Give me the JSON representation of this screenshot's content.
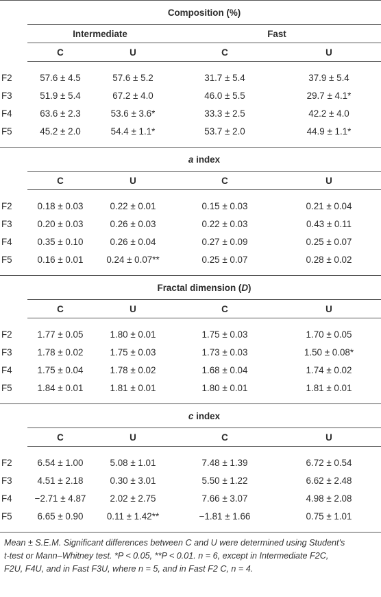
{
  "sections": [
    {
      "title_pre": "",
      "title_italic": "",
      "title_post": "Composition (%)",
      "closing_paren": "",
      "group_labels": [
        "Intermediate",
        "Fast"
      ],
      "column_headers": [
        "C",
        "U",
        "C",
        "U"
      ],
      "rows": [
        {
          "label": "F2",
          "values": [
            "57.6 ± 4.5",
            "57.6 ± 5.2",
            "31.7 ± 5.4",
            "37.9 ± 5.4"
          ]
        },
        {
          "label": "F3",
          "values": [
            "51.9 ± 5.4",
            "67.2 ± 4.0",
            "46.0 ± 5.5",
            "29.7 ± 4.1*"
          ]
        },
        {
          "label": "F4",
          "values": [
            "63.6 ± 2.3",
            "53.6 ± 3.6*",
            "33.3 ± 2.5",
            "42.2 ± 4.0"
          ]
        },
        {
          "label": "F5",
          "values": [
            "45.2 ± 2.0",
            "54.4 ± 1.1*",
            "53.7 ± 2.0",
            "44.9 ± 1.1*"
          ]
        }
      ]
    },
    {
      "title_pre": "",
      "title_italic": "a",
      "title_post": " index",
      "closing_paren": "",
      "column_headers": [
        "C",
        "U",
        "C",
        "U"
      ],
      "rows": [
        {
          "label": "F2",
          "values": [
            "0.18 ± 0.03",
            "0.22 ± 0.01",
            "0.15 ± 0.03",
            "0.21 ± 0.04"
          ]
        },
        {
          "label": "F3",
          "values": [
            "0.20 ± 0.03",
            "0.26 ± 0.03",
            "0.22 ± 0.03",
            "0.43 ± 0.11"
          ]
        },
        {
          "label": "F4",
          "values": [
            "0.35 ± 0.10",
            "0.26 ± 0.04",
            "0.27 ± 0.09",
            "0.25 ± 0.07"
          ]
        },
        {
          "label": "F5",
          "values": [
            "0.16 ± 0.01",
            "0.24 ± 0.07**",
            "0.25 ± 0.07",
            "0.28 ± 0.02"
          ]
        }
      ]
    },
    {
      "title_pre": "Fractal dimension (",
      "title_italic": "D",
      "title_post": "",
      "closing_paren": ")",
      "column_headers": [
        "C",
        "U",
        "C",
        "U"
      ],
      "rows": [
        {
          "label": "F2",
          "values": [
            "1.77 ± 0.05",
            "1.80 ± 0.01",
            "1.75 ± 0.03",
            "1.70 ± 0.05"
          ]
        },
        {
          "label": "F3",
          "values": [
            "1.78 ± 0.02",
            "1.75 ± 0.03",
            "1.73 ± 0.03",
            "1.50 ± 0.08*"
          ]
        },
        {
          "label": "F4",
          "values": [
            "1.75 ± 0.04",
            "1.78 ± 0.02",
            "1.68 ± 0.04",
            "1.74 ± 0.02"
          ]
        },
        {
          "label": "F5",
          "values": [
            "1.84 ± 0.01",
            "1.81 ± 0.01",
            "1.80 ± 0.01",
            "1.81 ± 0.01"
          ]
        }
      ]
    },
    {
      "title_pre": "",
      "title_italic": "c",
      "title_post": " index",
      "closing_paren": "",
      "column_headers": [
        "C",
        "U",
        "C",
        "U"
      ],
      "rows": [
        {
          "label": "F2",
          "values": [
            "6.54 ± 1.00",
            "5.08 ± 1.01",
            "7.48 ± 1.39",
            "6.72 ± 0.54"
          ]
        },
        {
          "label": "F3",
          "values": [
            "4.51 ± 2.18",
            "0.30 ± 3.01",
            "5.50 ± 1.22",
            "6.62 ± 2.48"
          ]
        },
        {
          "label": "F4",
          "values": [
            "−2.71 ± 4.87",
            "2.02 ± 2.75",
            "7.66 ± 3.07",
            "4.98 ± 2.08"
          ]
        },
        {
          "label": "F5",
          "values": [
            "6.65 ± 0.90",
            "0.11 ± 1.42**",
            "−1.81 ± 1.66",
            "0.75 ± 1.01"
          ]
        }
      ]
    }
  ],
  "footnote": {
    "line1": "Mean ± S.E.M. Significant differences between C and U were determined using Student's",
    "line2": "t-test or Mann–Whitney test. *P < 0.05, **P < 0.01. n = 6, except in Intermediate F2C,",
    "line3": "F2U, F4U, and in Fast F3U, where n = 5, and in Fast F2 C, n = 4."
  }
}
